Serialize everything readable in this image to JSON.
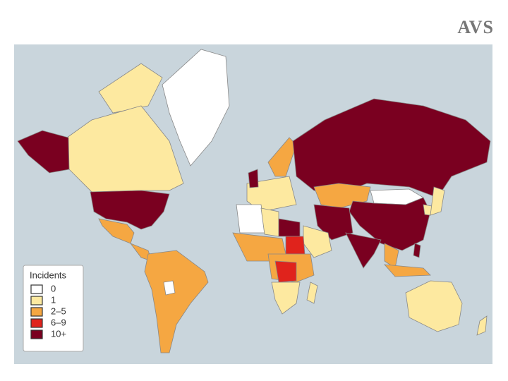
{
  "header": {
    "title": "AVS"
  },
  "map": {
    "background": "#c9d5dc",
    "legend": {
      "title": "Incidents",
      "items": [
        {
          "label": "0",
          "color": "#ffffff"
        },
        {
          "label": "1",
          "color": "#fde9a0"
        },
        {
          "label": "2–5",
          "color": "#f5a742"
        },
        {
          "label": "6–9",
          "color": "#e0231c"
        },
        {
          "label": "10+",
          "color": "#7a0020"
        }
      ]
    }
  }
}
